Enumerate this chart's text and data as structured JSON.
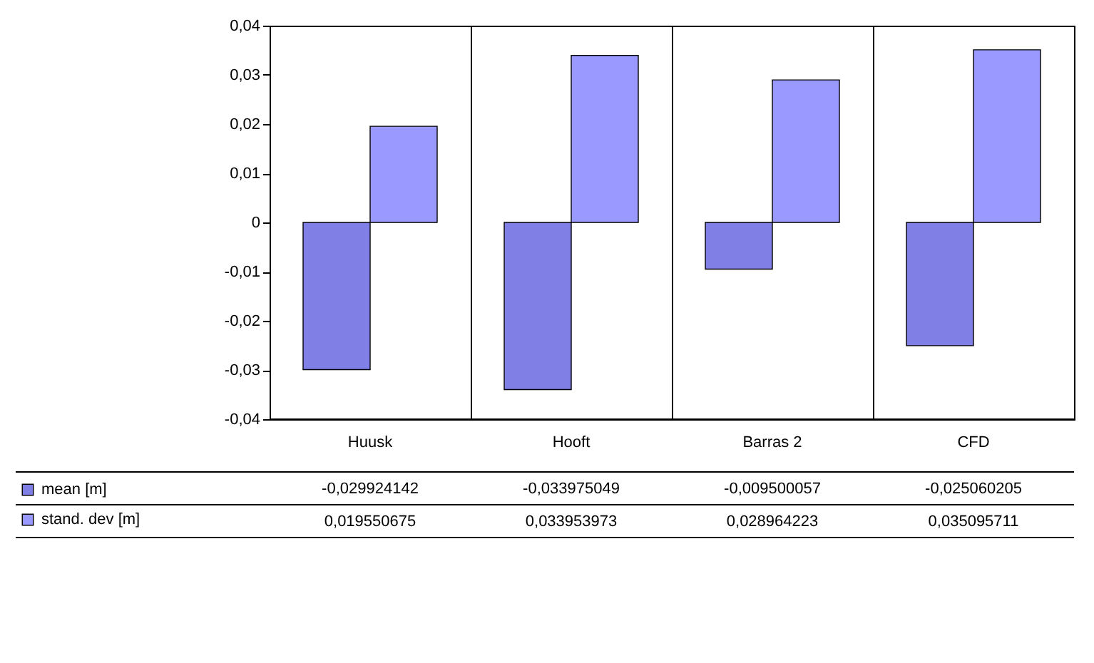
{
  "chart_data": {
    "type": "bar",
    "categories": [
      "Huusk",
      "Hooft",
      "Barras 2",
      "CFD"
    ],
    "series": [
      {
        "name": "mean [m]",
        "color": "#7f7fe6",
        "values": [
          -0.029924142,
          -0.033975049,
          -0.009500057,
          -0.025060205
        ],
        "value_labels": [
          "-0,029924142",
          "-0,033975049",
          "-0,009500057",
          "-0,025060205"
        ]
      },
      {
        "name": "stand. dev [m]",
        "color": "#9999ff",
        "values": [
          0.019550675,
          0.033953973,
          0.028964223,
          0.035095711
        ],
        "value_labels": [
          "0,019550675",
          "0,033953973",
          "0,028964223",
          "0,035095711"
        ]
      }
    ],
    "ylim": [
      -0.04,
      0.04
    ],
    "yticks": [
      {
        "value": -0.04,
        "label": "-0,04"
      },
      {
        "value": -0.03,
        "label": "-0,03"
      },
      {
        "value": -0.02,
        "label": "-0,02"
      },
      {
        "value": -0.01,
        "label": "-0,01"
      },
      {
        "value": 0,
        "label": "0"
      },
      {
        "value": 0.01,
        "label": "0,01"
      },
      {
        "value": 0.02,
        "label": "0,02"
      },
      {
        "value": 0.03,
        "label": "0,03"
      },
      {
        "value": 0.04,
        "label": "0,04"
      }
    ],
    "grid": "x",
    "legend": "bottom left"
  }
}
